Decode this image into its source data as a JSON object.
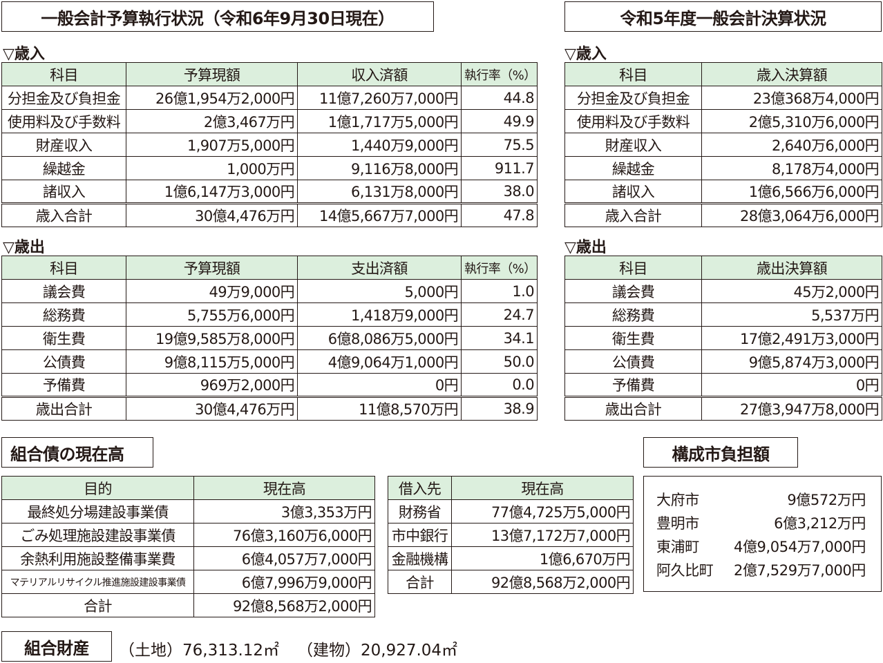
{
  "left_title": "一般会計予算執行状況（令和6年9月30日現在）",
  "right_title": "令和5年度一般会計決算状況",
  "revenue_label": "▽歳入",
  "expenditure_label": "▽歳出",
  "exec_revenue": {
    "headers": [
      "科目",
      "予算現額",
      "収入済額",
      "執行率（%）"
    ],
    "rows": [
      [
        "分担金及び負担金",
        "26億1,954万2,000円",
        "11億7,260万7,000円",
        "44.8"
      ],
      [
        "使用料及び手数料",
        "2億3,467万円",
        "1億1,717万5,000円",
        "49.9"
      ],
      [
        "財産収入",
        "1,907万5,000円",
        "1,440万9,000円",
        "75.5"
      ],
      [
        "繰越金",
        "1,000万円",
        "9,116万8,000円",
        "911.7"
      ],
      [
        "諸収入",
        "1億6,147万3,000円",
        "6,131万8,000円",
        "38.0"
      ],
      [
        "歳入合計",
        "30億4,476万円",
        "14億5,667万7,000円",
        "47.8"
      ]
    ]
  },
  "exec_expenditure": {
    "headers": [
      "科目",
      "予算現額",
      "支出済額",
      "執行率（%）"
    ],
    "rows": [
      [
        "議会費",
        "49万9,000円",
        "5,000円",
        "1.0"
      ],
      [
        "総務費",
        "5,755万6,000円",
        "1,418万9,000円",
        "24.7"
      ],
      [
        "衛生費",
        "19億9,585万8,000円",
        "6億8,086万5,000円",
        "34.1"
      ],
      [
        "公債費",
        "9億8,115万5,000円",
        "4億9,064万1,000円",
        "50.0"
      ],
      [
        "予備費",
        "969万2,000円",
        "0円",
        "0.0"
      ],
      [
        "歳出合計",
        "30億4,476万円",
        "11億8,570万円",
        "38.9"
      ]
    ]
  },
  "settle_revenue": {
    "headers": [
      "科目",
      "歳入決算額"
    ],
    "rows": [
      [
        "分担金及び負担金",
        "23億368万4,000円"
      ],
      [
        "使用料及び手数料",
        "2億5,310万6,000円"
      ],
      [
        "財産収入",
        "2,640万6,000円"
      ],
      [
        "繰越金",
        "8,178万4,000円"
      ],
      [
        "諸収入",
        "1億6,566万6,000円"
      ],
      [
        "歳入合計",
        "28億3,064万6,000円"
      ]
    ]
  },
  "settle_expenditure": {
    "headers": [
      "科目",
      "歳出決算額"
    ],
    "rows": [
      [
        "議会費",
        "45万2,000円"
      ],
      [
        "総務費",
        "5,537万円"
      ],
      [
        "衛生費",
        "17億2,491万3,000円"
      ],
      [
        "公債費",
        "9億5,874万3,000円"
      ],
      [
        "予備費",
        "0円"
      ],
      [
        "歳出合計",
        "27億3,947万8,000円"
      ]
    ]
  },
  "bonds_title": "組合債の現在高",
  "bonds_purpose": {
    "headers": [
      "目的",
      "現在高"
    ],
    "rows": [
      [
        "最終処分場建設事業債",
        "3億3,353万円"
      ],
      [
        "ごみ処理施設建設事業債",
        "76億3,160万6,000円"
      ],
      [
        "余熱利用施設整備事業費",
        "6億4,057万7,000円"
      ],
      [
        "マテリアルリサイクル推進施設建設事業債",
        "6億7,996万9,000円"
      ],
      [
        "合計",
        "92億8,568万2,000円"
      ]
    ]
  },
  "bonds_lender": {
    "headers": [
      "借入先",
      "現在高"
    ],
    "rows": [
      [
        "財務省",
        "77億4,725万5,000円"
      ],
      [
        "市中銀行",
        "13億7,172万7,000円"
      ],
      [
        "金融機構",
        "1億6,670万円"
      ],
      [
        "合計",
        "92億8,568万2,000円"
      ]
    ]
  },
  "share_title": "構成市負担額",
  "share": [
    [
      "大府市",
      "9億572万円"
    ],
    [
      "豊明市",
      "6億3,212万円"
    ],
    [
      "東浦町",
      "4億9,054万7,000円"
    ],
    [
      "阿久比町",
      "2億7,529万7,000円"
    ]
  ],
  "property_title": "組合財産",
  "property_land": "（土地）76,313.12㎡",
  "property_building": "（建物）20,927.04㎡"
}
